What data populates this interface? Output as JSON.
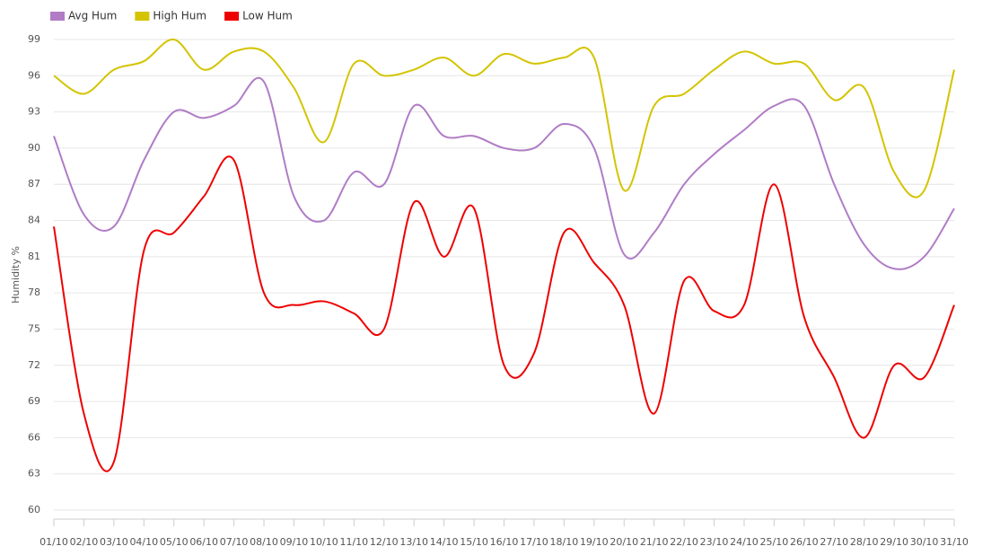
{
  "chart_data": {
    "type": "line",
    "y_label": "Humidity %",
    "categories": [
      "01/10",
      "02/10",
      "03/10",
      "04/10",
      "05/10",
      "06/10",
      "07/10",
      "08/10",
      "09/10",
      "10/10",
      "11/10",
      "12/10",
      "13/10",
      "14/10",
      "15/10",
      "16/10",
      "17/10",
      "18/10",
      "19/10",
      "20/10",
      "21/10",
      "22/10",
      "23/10",
      "24/10",
      "25/10",
      "26/10",
      "27/10",
      "28/10",
      "29/10",
      "30/10",
      "31/10"
    ],
    "series": [
      {
        "name": "Avg Hum",
        "color": "#b07cc6",
        "values": [
          91,
          84.5,
          83.5,
          89,
          93,
          92.5,
          93.5,
          95.5,
          86,
          84,
          88,
          87,
          93.5,
          91,
          91,
          90,
          90,
          92,
          90,
          81.2,
          83,
          87,
          89.5,
          91.5,
          93.5,
          93.5,
          87,
          82,
          80,
          81,
          85
        ]
      },
      {
        "name": "High Hum",
        "color": "#d4c400",
        "values": [
          96,
          94.5,
          96.5,
          97.2,
          99,
          96.5,
          98,
          98,
          95,
          90.5,
          97,
          96,
          96.5,
          97.5,
          96,
          97.8,
          97,
          97.5,
          97.5,
          86.5,
          93.5,
          94.5,
          96.5,
          98,
          97,
          97,
          94,
          95,
          88,
          86.5,
          96.5
        ]
      },
      {
        "name": "Low Hum",
        "color": "#ee0000",
        "values": [
          83.5,
          68,
          64,
          81.5,
          83,
          86,
          89,
          78,
          77,
          77.3,
          76.3,
          75,
          85.5,
          81,
          85,
          72,
          73,
          83,
          80.5,
          77,
          68,
          79,
          76.5,
          77,
          87,
          76,
          71,
          66,
          72,
          71,
          77
        ]
      }
    ],
    "ylim": [
      60,
      99
    ],
    "yticks": [
      60,
      63,
      66,
      69,
      72,
      75,
      78,
      81,
      84,
      87,
      90,
      93,
      96,
      99
    ],
    "grid": true,
    "legend": "top-left"
  }
}
